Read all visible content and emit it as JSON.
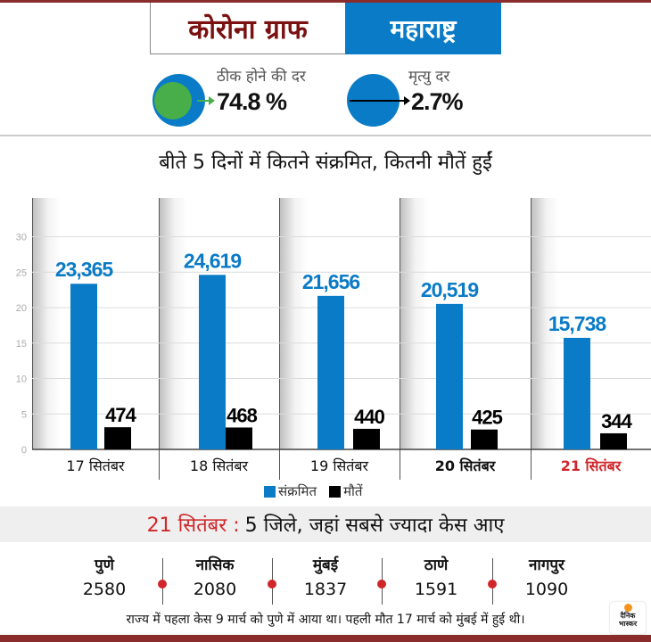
{
  "header": {
    "title": "कोरोना ग्राफ",
    "state": "महाराष्ट्र"
  },
  "rates": {
    "recovery": {
      "label": "ठीक होने की दर",
      "value": "74.8 %"
    },
    "mortality": {
      "label": "मृत्यु दर",
      "value": "2.7%"
    }
  },
  "colors": {
    "brand_maroon": "#8b2c2c",
    "title_red": "#7a1010",
    "blue": "#0a7bc6",
    "green": "#47ae4a",
    "highlight_red": "#d0262a",
    "black": "#000000"
  },
  "chart_data": {
    "type": "bar",
    "title": "बीते 5 दिनों में कितने संक्रमित, कितनी मौतें हुईं",
    "categories": [
      "17 सितंबर",
      "18 सितंबर",
      "19 सितंबर",
      "20 सितंबर",
      "21 सितंबर"
    ],
    "highlight_category": "21 सितंबर",
    "series": [
      {
        "name": "संक्रमित",
        "values": [
          23365,
          24619,
          21656,
          20519,
          15738
        ],
        "labels": [
          "23,365",
          "24,619",
          "21,656",
          "20,519",
          "15,738"
        ],
        "color": "#0a7bc6"
      },
      {
        "name": "मौतें",
        "values": [
          474,
          468,
          440,
          425,
          344
        ],
        "labels": [
          "474",
          "468",
          "440",
          "425",
          "344"
        ],
        "color": "#000000"
      }
    ],
    "yticks": [
      "0",
      "5",
      "10",
      "15",
      "20",
      "25",
      "30"
    ],
    "ylabel": "",
    "xlabel": "",
    "ylim": [
      0,
      30
    ],
    "y_unit_note": "thousands",
    "grid": true,
    "legend_position": "bottom-center"
  },
  "districts": {
    "heading_date": "21 सितंबर :",
    "heading_rest": "5 जिले, जहां सबसे ज्यादा केस आए",
    "items": [
      {
        "name": "पुणे",
        "count": "2580"
      },
      {
        "name": "नासिक",
        "count": "2080"
      },
      {
        "name": "मुंबई",
        "count": "1837"
      },
      {
        "name": "ठाणे",
        "count": "1591"
      },
      {
        "name": "नागपुर",
        "count": "1090"
      }
    ]
  },
  "footnote": "राज्य में पहला केस 9 मार्च को पुणे में आया था। पहली मौत 17 मार्च को मुंबई में हुई थी।",
  "logo": {
    "line1": "दैनिक",
    "line2": "भास्कर"
  }
}
